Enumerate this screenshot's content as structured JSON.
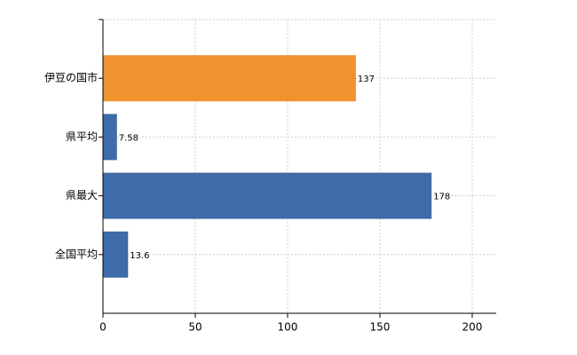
{
  "chart_data": {
    "type": "hbar",
    "categories": [
      "伊豆の国市",
      "県平均",
      "県最大",
      "全国平均"
    ],
    "values": [
      137,
      7.58,
      178,
      13.6
    ],
    "colors": [
      "#f0922e",
      "#3f6ba8",
      "#3f6ba8",
      "#3f6ba8"
    ],
    "xlim": [
      0,
      213
    ],
    "xticks": [
      0,
      50,
      100,
      150,
      200
    ],
    "grid": true
  }
}
